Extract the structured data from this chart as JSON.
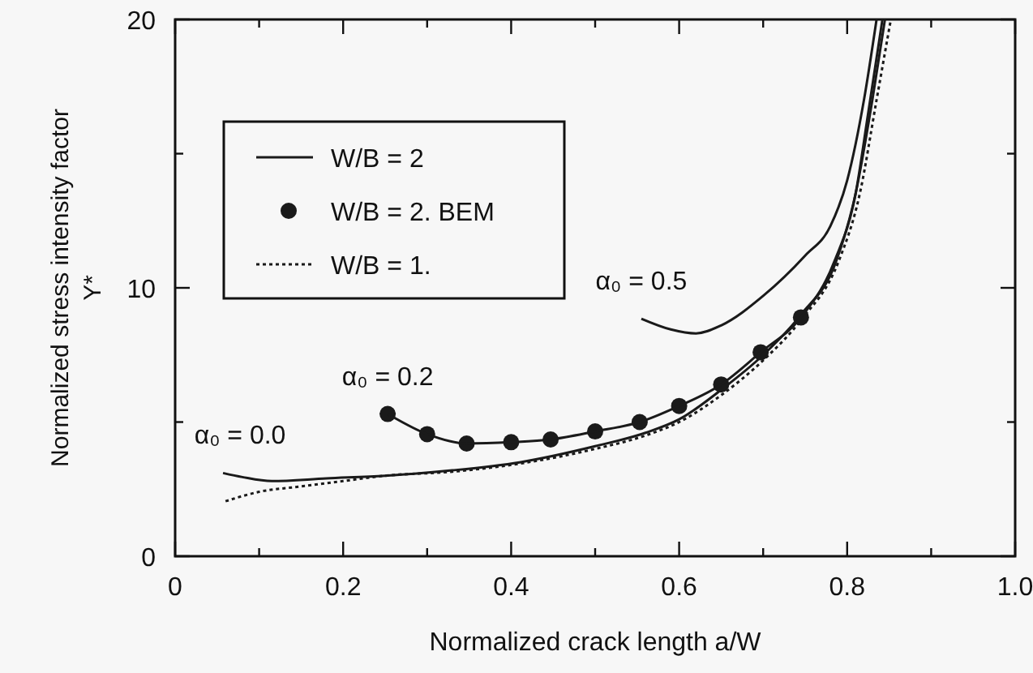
{
  "chart_data": {
    "type": "line",
    "xlabel": "Normalized crack length a/W",
    "ylabel": "Normalized stress intensity factor\nY*",
    "xlim": [
      0,
      1
    ],
    "ylim": [
      0,
      20
    ],
    "xticks": [
      0,
      {
        "value": 0.1,
        "label": null
      },
      0.2,
      {
        "value": 0.3,
        "label": null
      },
      0.4,
      {
        "value": 0.5,
        "label": null
      },
      0.6,
      {
        "value": 0.7,
        "label": null
      },
      0.8,
      {
        "value": 0.9,
        "label": null
      },
      {
        "value": 1,
        "label": "1.0"
      }
    ],
    "yticks": [
      0,
      {
        "value": 5,
        "label": null
      },
      10,
      {
        "value": 15,
        "label": null
      },
      20
    ],
    "grid": false,
    "legend": "top left",
    "series": [
      {
        "name": "W/B = 2",
        "color": "#1a1a1a",
        "line_style": "solid",
        "marker": "none",
        "x": [
          0.057,
          0.08,
          0.115,
          0.18,
          0.25,
          0.33,
          0.41,
          0.5,
          0.56,
          0.6,
          0.65,
          0.7,
          0.745,
          0.787,
          0.81,
          0.83,
          0.845
        ],
        "values": [
          3.1,
          2.95,
          2.8,
          2.9,
          3.0,
          3.2,
          3.5,
          4.1,
          4.6,
          5.1,
          6.2,
          7.5,
          9.0,
          11.0,
          13.5,
          17.0,
          20
        ]
      },
      {
        "name": "W/B = 2. BEM",
        "type": "scatter",
        "color": "#1a1a1a",
        "marker": "circle",
        "x": [
          0.253,
          0.3,
          0.347,
          0.4,
          0.447,
          0.5,
          0.553,
          0.6,
          0.65,
          0.697,
          0.745
        ],
        "values": [
          5.3,
          4.55,
          4.2,
          4.25,
          4.35,
          4.65,
          5.0,
          5.6,
          6.4,
          7.6,
          8.9
        ]
      },
      {
        "name": "W/B = 1.",
        "color": "#1a1a1a",
        "line_style": "dotted",
        "marker": "none",
        "x": [
          0.06,
          0.1,
          0.15,
          0.2,
          0.25,
          0.33,
          0.41,
          0.5,
          0.56,
          0.6,
          0.65,
          0.7,
          0.745,
          0.79,
          0.815,
          0.835,
          0.852
        ],
        "values": [
          2.05,
          2.4,
          2.6,
          2.8,
          3.0,
          3.15,
          3.45,
          4.0,
          4.5,
          5.0,
          6.0,
          7.3,
          8.8,
          11.0,
          13.5,
          17.0,
          20
        ]
      },
      {
        "color": "#1a1a1a",
        "line_style": "solid",
        "marker": "none",
        "x": [
          0.253,
          0.3,
          0.347,
          0.4,
          0.447,
          0.5,
          0.553,
          0.6,
          0.65,
          0.697,
          0.745,
          0.785,
          0.81,
          0.825,
          0.842
        ],
        "values": [
          5.3,
          4.55,
          4.2,
          4.25,
          4.35,
          4.65,
          5.0,
          5.6,
          6.4,
          7.6,
          8.9,
          11.0,
          13.5,
          16.5,
          20
        ]
      },
      {
        "color": "#1a1a1a",
        "line_style": "solid",
        "marker": "none",
        "x": [
          0.555,
          0.59,
          0.62,
          0.65,
          0.7,
          0.75,
          0.78,
          0.8,
          0.82,
          0.835
        ],
        "values": [
          8.85,
          8.45,
          8.3,
          8.6,
          9.7,
          11.2,
          12.3,
          14.0,
          17.0,
          20
        ]
      }
    ],
    "annotations": [
      {
        "text": "α₀ = 0.0",
        "x": 0.057,
        "y": 3.1
      },
      {
        "text": "α₀ = 0.2",
        "x": 0.253,
        "y": 5.3
      },
      {
        "text": "α₀ = 0.5",
        "x": 0.555,
        "y": 8.85
      }
    ]
  }
}
